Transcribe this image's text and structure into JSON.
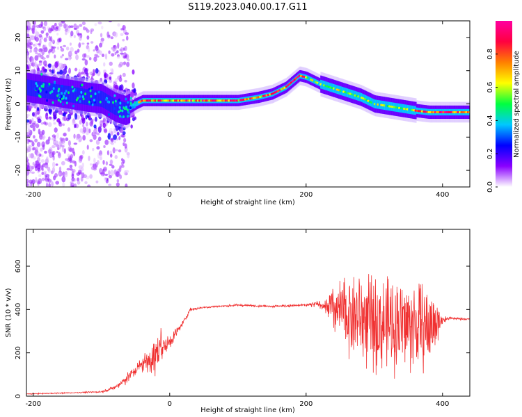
{
  "title": "S119.2023.040.00.17.G11",
  "chart_data": [
    {
      "type": "heatmap",
      "xlabel": "Height of straight line (km)",
      "ylabel": "Frequency (Hz)",
      "xlim": [
        -210,
        440
      ],
      "ylim": [
        -25,
        25
      ],
      "x_ticks": [
        -200,
        0,
        200,
        400
      ],
      "y_ticks": [
        -20,
        -10,
        0,
        10,
        20
      ],
      "colorbar": {
        "label": "Normalized spectral amplitude",
        "range": [
          0,
          1
        ],
        "ticks": [
          "0.0",
          "0.2",
          "0.4",
          "0.6",
          "0.8"
        ],
        "colors": [
          "#ffffff",
          "#8a00ff",
          "#0000ff",
          "#00c8ff",
          "#00ff40",
          "#ffff00",
          "#ff8000",
          "#ff0040",
          "#ff00a0"
        ]
      },
      "ridge": {
        "x": [
          -210,
          -180,
          -150,
          -120,
          -100,
          -80,
          -65,
          -50,
          -40,
          0,
          50,
          100,
          130,
          150,
          170,
          190,
          200,
          220,
          250,
          280,
          300,
          330,
          360,
          380,
          400,
          440
        ],
        "y": [
          5,
          4,
          3,
          2,
          1.5,
          -1,
          -2,
          0,
          1,
          1,
          1,
          1,
          2,
          3,
          5,
          8.5,
          8,
          6,
          4,
          2,
          0,
          -1,
          -2,
          -2.5,
          -2.5,
          -2.5
        ]
      },
      "grid": false,
      "legend": "colorbar-right"
    },
    {
      "type": "line",
      "xlabel": "Height of straight line (km)",
      "ylabel": "SNR (10 * v/v)",
      "xlim": [
        -210,
        440
      ],
      "ylim": [
        0,
        770
      ],
      "x_ticks": [
        -200,
        0,
        200,
        400
      ],
      "y_ticks": [
        0,
        200,
        400,
        600
      ],
      "color": "#f03030",
      "envelope": {
        "x": [
          -210,
          -150,
          -100,
          -80,
          -60,
          -40,
          -20,
          0,
          20,
          30,
          50,
          100,
          150,
          200,
          220,
          240,
          260,
          280,
          300,
          350,
          380,
          400,
          410,
          440
        ],
        "mean": [
          10,
          15,
          20,
          40,
          90,
          150,
          200,
          250,
          340,
          400,
          410,
          420,
          415,
          420,
          425,
          400,
          380,
          360,
          330,
          330,
          320,
          350,
          360,
          355
        ],
        "spread": [
          5,
          6,
          8,
          25,
          60,
          90,
          120,
          80,
          25,
          20,
          12,
          12,
          12,
          15,
          40,
          130,
          220,
          250,
          260,
          260,
          230,
          60,
          15,
          10
        ]
      },
      "grid": false
    }
  ]
}
